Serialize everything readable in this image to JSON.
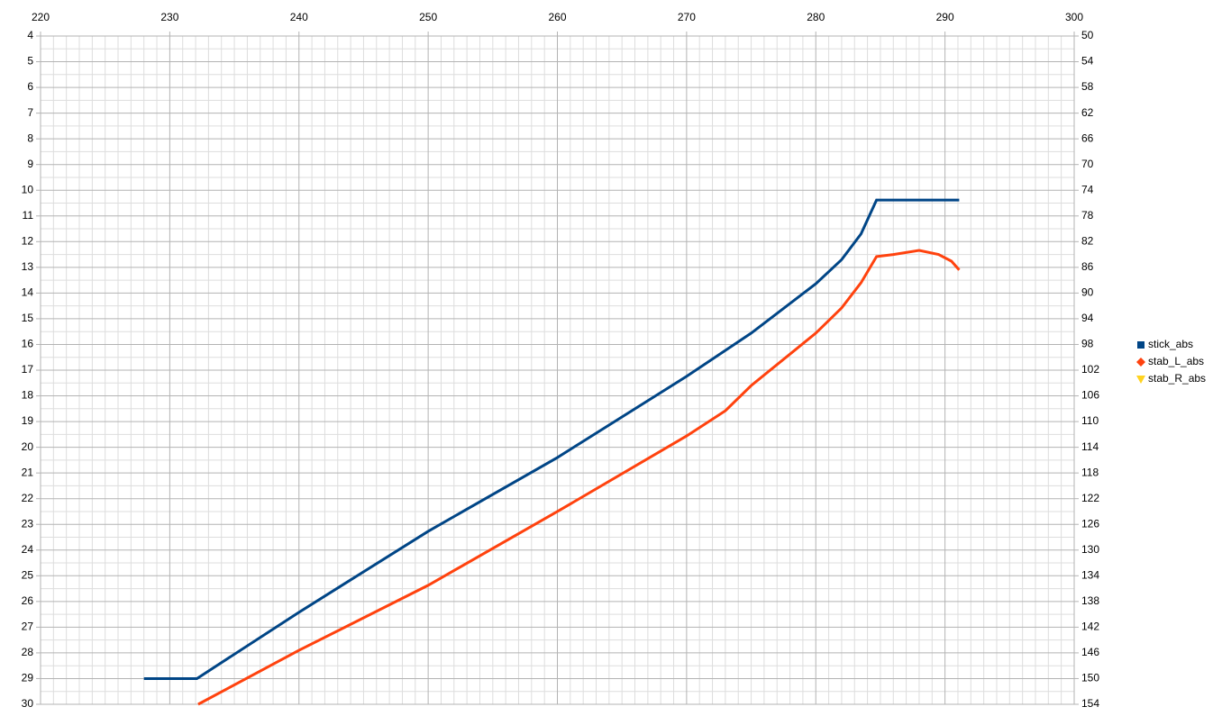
{
  "chart_data": {
    "type": "line",
    "xlim": [
      220,
      300
    ],
    "xticks": [
      220,
      230,
      240,
      250,
      260,
      270,
      280,
      290,
      300
    ],
    "xminorticks": [
      221,
      222,
      223,
      224,
      225,
      226,
      227,
      228,
      229,
      231,
      232,
      233,
      234,
      235,
      236,
      237,
      238,
      239,
      241,
      242,
      243,
      244,
      245,
      246,
      247,
      248,
      249,
      251,
      252,
      253,
      254,
      255,
      256,
      257,
      258,
      259,
      261,
      262,
      263,
      264,
      265,
      266,
      267,
      268,
      269,
      271,
      272,
      273,
      274,
      275,
      276,
      277,
      278,
      279,
      281,
      282,
      283,
      284,
      285,
      286,
      287,
      288,
      289,
      291,
      292,
      293,
      294,
      295,
      296,
      297,
      298,
      299
    ],
    "ylim": [
      30,
      4
    ],
    "yticks": [
      4,
      5,
      6,
      7,
      8,
      9,
      10,
      11,
      12,
      13,
      14,
      15,
      16,
      17,
      18,
      19,
      20,
      21,
      22,
      23,
      24,
      25,
      26,
      27,
      28,
      29,
      30
    ],
    "yminorticks": [
      4.5,
      5.5,
      6.5,
      7.5,
      8.5,
      9.5,
      10.5,
      11.5,
      12.5,
      13.5,
      14.5,
      15.5,
      16.5,
      17.5,
      18.5,
      19.5,
      20.5,
      21.5,
      22.5,
      23.5,
      24.5,
      25.5,
      26.5,
      27.5,
      28.5,
      29.5
    ],
    "y2lim": [
      154,
      50
    ],
    "y2ticks": [
      50,
      54,
      58,
      62,
      66,
      70,
      74,
      78,
      82,
      86,
      90,
      94,
      98,
      102,
      106,
      110,
      114,
      118,
      122,
      126,
      130,
      134,
      138,
      142,
      146,
      150,
      154
    ],
    "grid": true,
    "legend": "right",
    "series": [
      {
        "name": "stick_abs",
        "color": "#004586",
        "marker": "square",
        "x": [
          228,
          232.1,
          240,
          250,
          260,
          270,
          275,
          280,
          282,
          283.5,
          284.7,
          291.1
        ],
        "values": [
          29,
          29,
          26.42,
          23.27,
          20.4,
          17.24,
          15.56,
          13.64,
          12.7,
          11.7,
          10.38,
          10.38
        ]
      },
      {
        "name": "stab_L_abs",
        "color": "#ff420e",
        "marker": "diamond",
        "x": [
          232.2,
          240,
          250,
          260,
          270,
          273,
          275,
          280,
          282,
          283.5,
          284.7,
          286,
          288,
          289.5,
          290.5,
          291.1
        ],
        "values": [
          30,
          27.9,
          25.37,
          22.5,
          19.56,
          18.58,
          17.6,
          15.56,
          14.58,
          13.6,
          12.58,
          12.5,
          12.34,
          12.5,
          12.76,
          13.1
        ]
      },
      {
        "name": "stab_R_abs",
        "color": "#ffd320",
        "marker": "triangle-down",
        "axis": "y2",
        "x": [],
        "values": []
      }
    ]
  }
}
